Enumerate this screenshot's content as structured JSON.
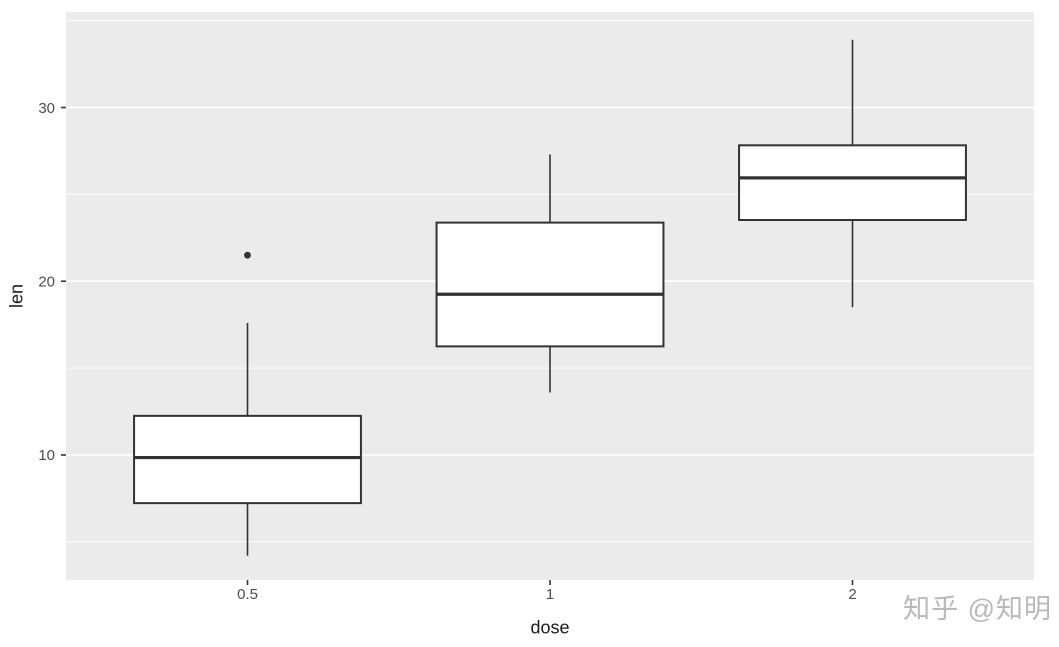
{
  "chart_data": {
    "type": "boxplot",
    "title": "",
    "xlabel": "dose",
    "ylabel": "len",
    "categories": [
      "0.5",
      "1",
      "2"
    ],
    "y_ticks": [
      10,
      20,
      30
    ],
    "y_minor_ticks": [
      5,
      15,
      25,
      35
    ],
    "ylim": [
      2.8,
      35.5
    ],
    "grid": "on",
    "legend": "none",
    "series": [
      {
        "category": "0.5",
        "whisker_min": 4.2,
        "q1": 7.225,
        "median": 9.85,
        "q3": 12.25,
        "whisker_max": 17.6,
        "outliers": [
          21.5
        ]
      },
      {
        "category": "1",
        "whisker_min": 13.6,
        "q1": 16.25,
        "median": 19.25,
        "q3": 23.375,
        "whisker_max": 27.3,
        "outliers": []
      },
      {
        "category": "2",
        "whisker_min": 18.5,
        "q1": 23.525,
        "median": 25.95,
        "q3": 27.825,
        "whisker_max": 33.9,
        "outliers": []
      }
    ],
    "style": {
      "panel_bg": "#EBEBEB",
      "grid_color": "#FFFFFF",
      "box_stroke": "#333333",
      "box_fill": "#FFFFFF",
      "tick_color": "#333333",
      "tick_label_color": "#4D4D4D"
    }
  },
  "watermark": {
    "text": "知乎 @知明"
  }
}
